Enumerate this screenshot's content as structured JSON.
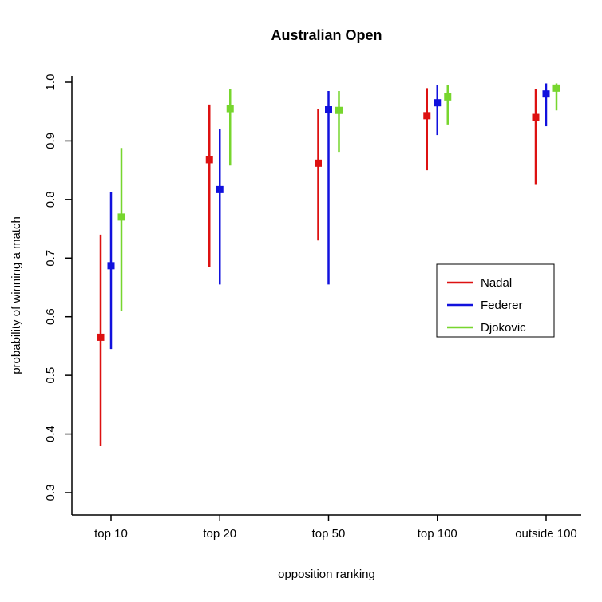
{
  "chart_data": {
    "type": "scatter",
    "title": "Australian Open",
    "xlabel": "opposition ranking",
    "ylabel": "probability of winning a match",
    "categories": [
      "top 10",
      "top 20",
      "top 50",
      "top 100",
      "outside 100"
    ],
    "ytick_labels": [
      "0.3",
      "0.4",
      "0.5",
      "0.6",
      "0.7",
      "0.8",
      "0.9",
      "1.0"
    ],
    "yticks": [
      0.3,
      0.4,
      0.5,
      0.6,
      0.7,
      0.8,
      0.9,
      1.0
    ],
    "ylim": [
      0.28,
      1.01
    ],
    "grid": "off",
    "legend_position": "right-middle",
    "point_style": "filled-square with vertical error bar",
    "series": [
      {
        "name": "Nadal",
        "color": "#DD1111",
        "means": [
          0.565,
          0.868,
          0.862,
          0.943,
          0.94
        ],
        "lower": [
          0.38,
          0.685,
          0.73,
          0.85,
          0.825
        ],
        "upper": [
          0.74,
          0.962,
          0.955,
          0.99,
          0.988
        ]
      },
      {
        "name": "Federer",
        "color": "#1111DD",
        "means": [
          0.687,
          0.817,
          0.953,
          0.965,
          0.98
        ],
        "lower": [
          0.545,
          0.655,
          0.655,
          0.91,
          0.925
        ],
        "upper": [
          0.812,
          0.92,
          0.985,
          0.995,
          0.998
        ]
      },
      {
        "name": "Djokovic",
        "color": "#77D62E",
        "means": [
          0.77,
          0.955,
          0.952,
          0.975,
          0.99
        ],
        "lower": [
          0.61,
          0.858,
          0.88,
          0.928,
          0.952
        ],
        "upper": [
          0.888,
          0.988,
          0.985,
          0.995,
          0.998
        ]
      }
    ]
  }
}
